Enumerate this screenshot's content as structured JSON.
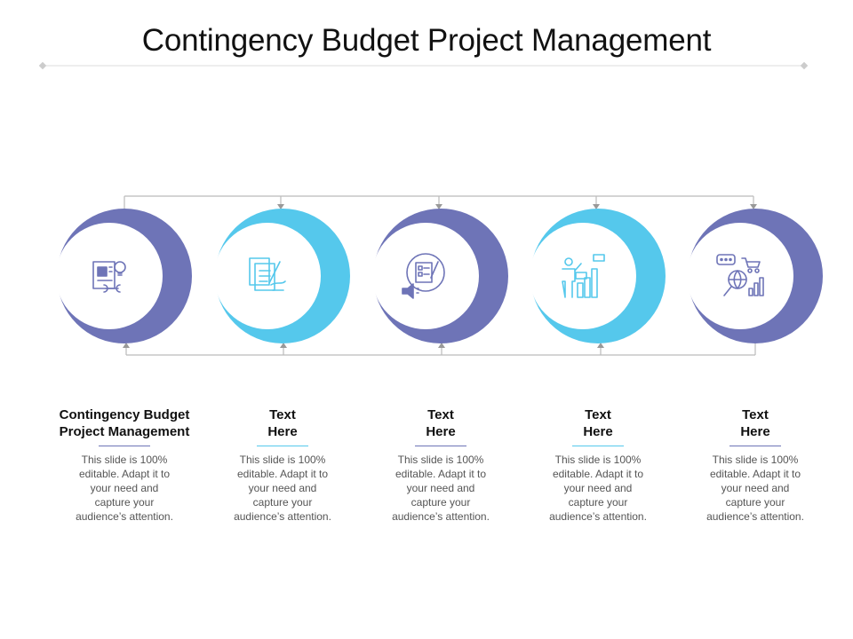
{
  "title": "Contingency Budget Project Management",
  "colors": {
    "purple": "#6E74B7",
    "cyan": "#55C8EC",
    "connector": "#BBBBBB",
    "divider": "#DDDDDD",
    "heading_text": "#111111",
    "body_text": "#555555"
  },
  "steps": [
    {
      "heading": [
        "Contingency Budget",
        "Project Management"
      ],
      "body": [
        "This slide is 100%",
        "editable. Adapt it to",
        "your need and",
        "capture your",
        "audience’s attention."
      ],
      "color": "purple",
      "icon": "budget-planning-icon"
    },
    {
      "heading": [
        "Text",
        "Here"
      ],
      "body": [
        "This slide is 100%",
        "editable. Adapt it to",
        "your need and",
        "capture your",
        "audience’s attention."
      ],
      "color": "cyan",
      "icon": "document-signing-icon"
    },
    {
      "heading": [
        "Text",
        "Here"
      ],
      "body": [
        "This slide is 100%",
        "editable. Adapt it to",
        "your need and",
        "capture your",
        "audience’s attention."
      ],
      "color": "purple",
      "icon": "checklist-megaphone-icon"
    },
    {
      "heading": [
        "Text",
        "Here"
      ],
      "body": [
        "This slide is 100%",
        "editable. Adapt it to",
        "your need and",
        "capture your",
        "audience’s attention."
      ],
      "color": "cyan",
      "icon": "presenter-chart-icon"
    },
    {
      "heading": [
        "Text",
        "Here"
      ],
      "body": [
        "This slide is 100%",
        "editable. Adapt it to",
        "your need and",
        "capture your",
        "audience’s attention."
      ],
      "color": "purple",
      "icon": "global-commerce-icon"
    }
  ]
}
